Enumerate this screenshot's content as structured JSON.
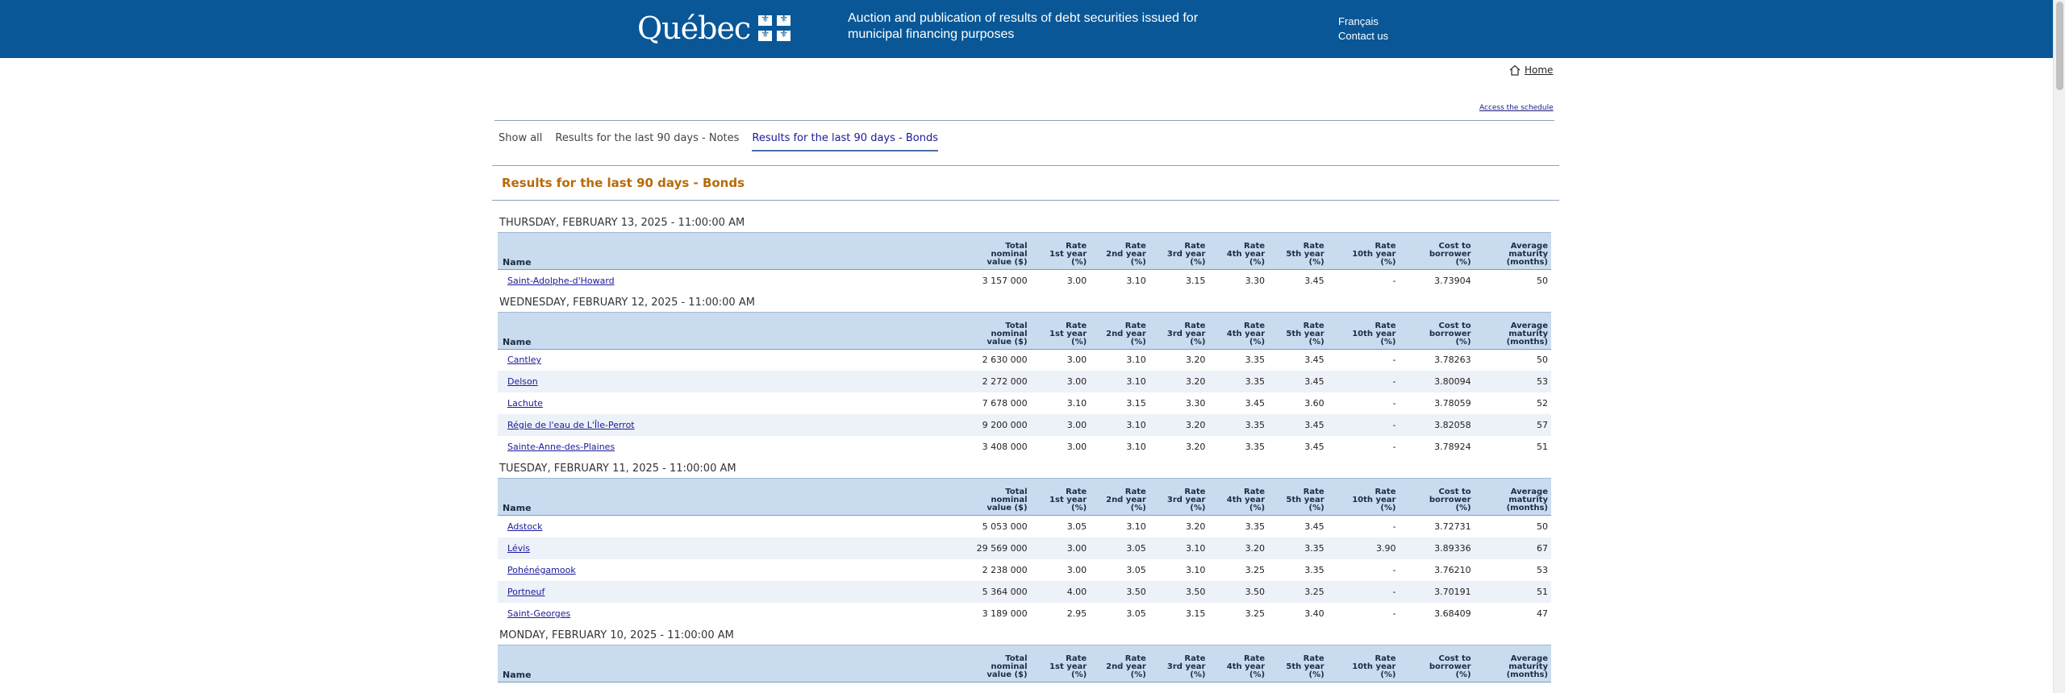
{
  "header": {
    "logo_text": "Québec",
    "site_title": "Auction and publication of results of debt securities issued for municipal financing purposes",
    "links": [
      "Français",
      "Contact us"
    ]
  },
  "nav": {
    "home": "Home",
    "schedule": "Access the schedule"
  },
  "tabs": [
    {
      "label": "Show all",
      "active": false
    },
    {
      "label": "Results for the last 90 days - Notes",
      "active": false
    },
    {
      "label": "Results for the last 90 days - Bonds",
      "active": true
    }
  ],
  "section_title": "Results for the last 90 days - Bonds",
  "columns": [
    "Name",
    "Total nominal value ($)",
    "Rate 1st year (%)",
    "Rate 2nd year (%)",
    "Rate 3rd year (%)",
    "Rate 4th year (%)",
    "Rate 5th year (%)",
    "Rate 10th year (%)",
    "Cost to borrower (%)",
    "Average maturity (months)"
  ],
  "column_lines": [
    [
      "Name"
    ],
    [
      "Total",
      "nominal",
      "value ($)"
    ],
    [
      "Rate",
      "1st year",
      "(%)"
    ],
    [
      "Rate",
      "2nd year",
      "(%)"
    ],
    [
      "Rate",
      "3rd year",
      "(%)"
    ],
    [
      "Rate",
      "4th year",
      "(%)"
    ],
    [
      "Rate",
      "5th year",
      "(%)"
    ],
    [
      "Rate",
      "10th year",
      "(%)"
    ],
    [
      "Cost to",
      "borrower",
      "(%)"
    ],
    [
      "Average",
      "maturity",
      "(months)"
    ]
  ],
  "days": [
    {
      "title": "THURSDAY, FEBRUARY 13, 2025 - 11:00:00 AM",
      "rows": [
        [
          "Saint-Adolphe-d'Howard",
          "3 157 000",
          "3.00",
          "3.10",
          "3.15",
          "3.30",
          "3.45",
          "-",
          "3.73904",
          "50"
        ]
      ]
    },
    {
      "title": "WEDNESDAY, FEBRUARY 12, 2025 - 11:00:00 AM",
      "rows": [
        [
          "Cantley",
          "2 630 000",
          "3.00",
          "3.10",
          "3.20",
          "3.35",
          "3.45",
          "-",
          "3.78263",
          "50"
        ],
        [
          "Delson",
          "2 272 000",
          "3.00",
          "3.10",
          "3.20",
          "3.35",
          "3.45",
          "-",
          "3.80094",
          "53"
        ],
        [
          "Lachute",
          "7 678 000",
          "3.10",
          "3.15",
          "3.30",
          "3.45",
          "3.60",
          "-",
          "3.78059",
          "52"
        ],
        [
          "Régie de l'eau de L'Île-Perrot",
          "9 200 000",
          "3.00",
          "3.10",
          "3.20",
          "3.35",
          "3.45",
          "-",
          "3.82058",
          "57"
        ],
        [
          "Sainte-Anne-des-Plaines",
          "3 408 000",
          "3.00",
          "3.10",
          "3.20",
          "3.35",
          "3.45",
          "-",
          "3.78924",
          "51"
        ]
      ]
    },
    {
      "title": "TUESDAY, FEBRUARY 11, 2025 - 11:00:00 AM",
      "rows": [
        [
          "Adstock",
          "5 053 000",
          "3.05",
          "3.10",
          "3.20",
          "3.35",
          "3.45",
          "-",
          "3.72731",
          "50"
        ],
        [
          "Lévis",
          "29 569 000",
          "3.00",
          "3.05",
          "3.10",
          "3.20",
          "3.35",
          "3.90",
          "3.89336",
          "67"
        ],
        [
          "Pohénégamook",
          "2 238 000",
          "3.00",
          "3.05",
          "3.10",
          "3.25",
          "3.35",
          "-",
          "3.76210",
          "53"
        ],
        [
          "Portneuf",
          "5 364 000",
          "4.00",
          "3.50",
          "3.50",
          "3.50",
          "3.25",
          "-",
          "3.70191",
          "51"
        ],
        [
          "Saint-Georges",
          "3 189 000",
          "2.95",
          "3.05",
          "3.15",
          "3.25",
          "3.40",
          "-",
          "3.68409",
          "47"
        ]
      ]
    },
    {
      "title": "MONDAY, FEBRUARY 10, 2025 - 11:00:00 AM",
      "rows": []
    }
  ]
}
